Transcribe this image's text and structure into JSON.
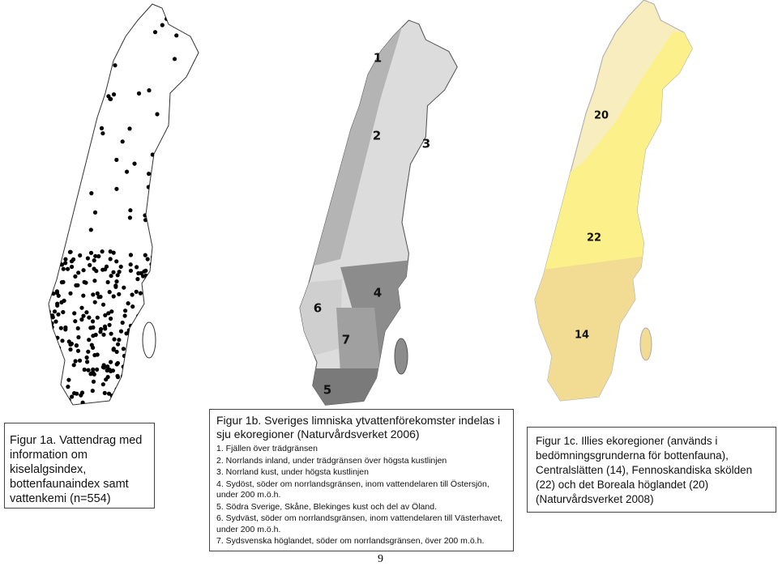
{
  "figure_1a": {
    "caption": "Figur 1a. Vattendrag med information om kiselalgsindex, bottenfaunaindex samt vattenkemi (n=554)"
  },
  "figure_1b": {
    "map_labels": [
      "1",
      "2",
      "3",
      "4",
      "5",
      "6",
      "7"
    ],
    "caption_title": "Figur 1b. Sveriges limniska ytvattenförekomster indelas i sju ekoregioner (Naturvårdsverket 2006)",
    "items": [
      "1. Fjällen över trädgränsen",
      "2. Norrlands inland, under trädgränsen över högsta kustlinjen",
      "3. Norrland kust, under högsta kustlinjen",
      "4. Sydöst, söder om norrlandsgränsen, inom vattendelaren till Östersjön, under 200 m.ö.h.",
      "5. Södra Sverige, Skåne, Blekinges kust och del av Öland.",
      "6. Sydväst, söder om norrlandsgränsen, inom vattendelaren till Västerhavet, under 200 m.ö.h.",
      "7. Sydsvenska höglandet, söder om norrlandsgränsen, över 200 m.ö.h."
    ]
  },
  "figure_1c": {
    "map_labels": [
      "20",
      "22",
      "14"
    ],
    "caption": "Figur 1c. Illies ekoregioner (används i bedömningsgrunderna för bottenfauna), Centralslätten (14), Fennoskandiska skölden (22) och det Boreala höglandet (20) (Naturvårdsverket 2008)"
  },
  "page_number": "9"
}
